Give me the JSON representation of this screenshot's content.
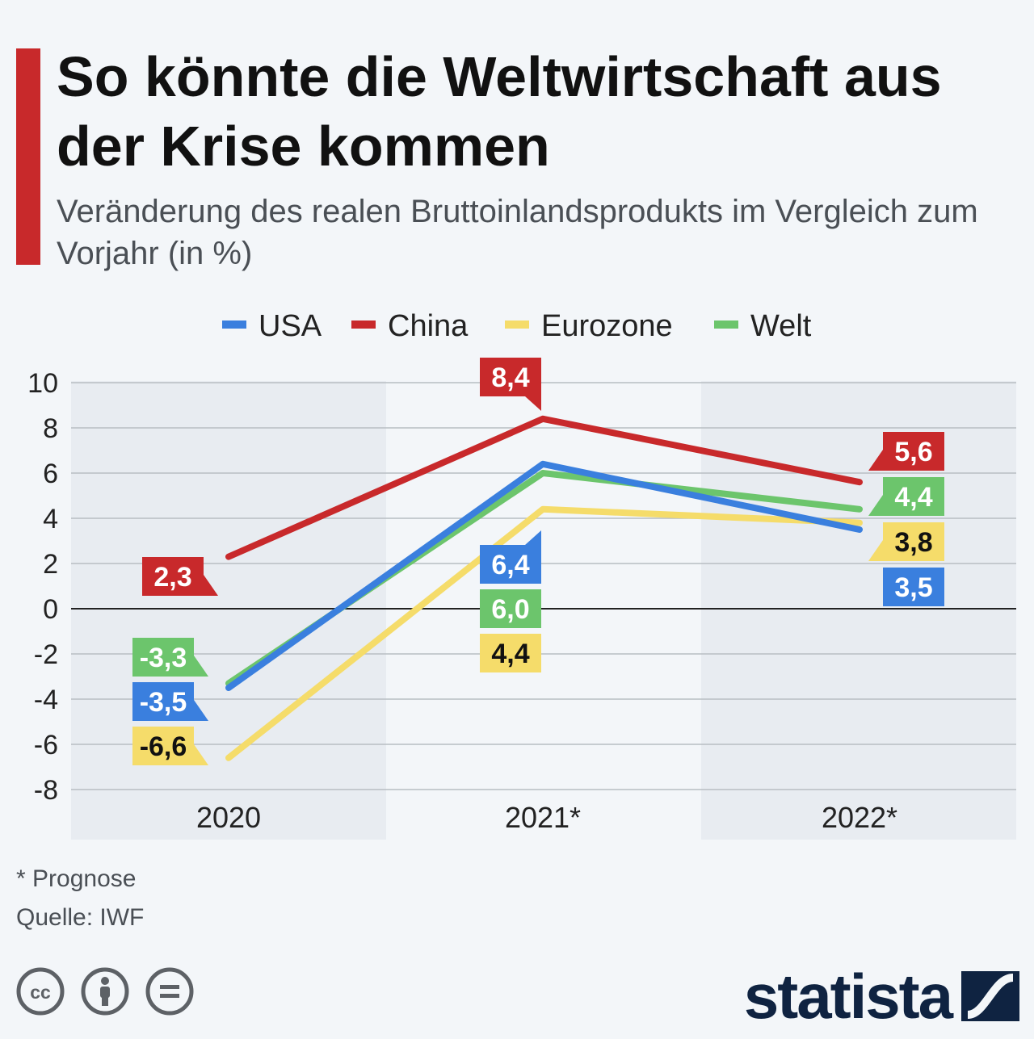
{
  "header": {
    "title": "So könnte die Weltwirtschaft aus der Krise kommen",
    "subtitle": "Veränderung des realen Bruttoinlandsprodukts im Vergleich zum Vorjahr (in %)"
  },
  "chart_data": {
    "type": "line",
    "categories": [
      "2020",
      "2021*",
      "2022*"
    ],
    "series": [
      {
        "name": "USA",
        "color": "#3a7fde",
        "values": [
          -3.5,
          6.4,
          3.5
        ],
        "labels": [
          "-3,5",
          "6,4",
          "3,5"
        ]
      },
      {
        "name": "China",
        "color": "#c8292b",
        "values": [
          2.3,
          8.4,
          5.6
        ],
        "labels": [
          "2,3",
          "8,4",
          "5,6"
        ]
      },
      {
        "name": "Eurozone",
        "color": "#f5dc6a",
        "values": [
          -6.6,
          4.4,
          3.8
        ],
        "labels": [
          "-6,6",
          "4,4",
          "3,8"
        ]
      },
      {
        "name": "Welt",
        "color": "#6cc56c",
        "values": [
          -3.3,
          6.0,
          4.4
        ],
        "labels": [
          "-3,3",
          "6,0",
          "4,4"
        ]
      }
    ],
    "y_ticks": [
      "10",
      "8",
      "6",
      "4",
      "2",
      "0",
      "-2",
      "-4",
      "-6",
      "-8"
    ],
    "ylim": [
      -8,
      10
    ],
    "grid": true,
    "legend": "top-center"
  },
  "footer": {
    "note": "* Prognose",
    "source": "Quelle: IWF",
    "brand": "statista",
    "license_icons": [
      "cc-icon",
      "by-icon",
      "nd-icon"
    ]
  }
}
